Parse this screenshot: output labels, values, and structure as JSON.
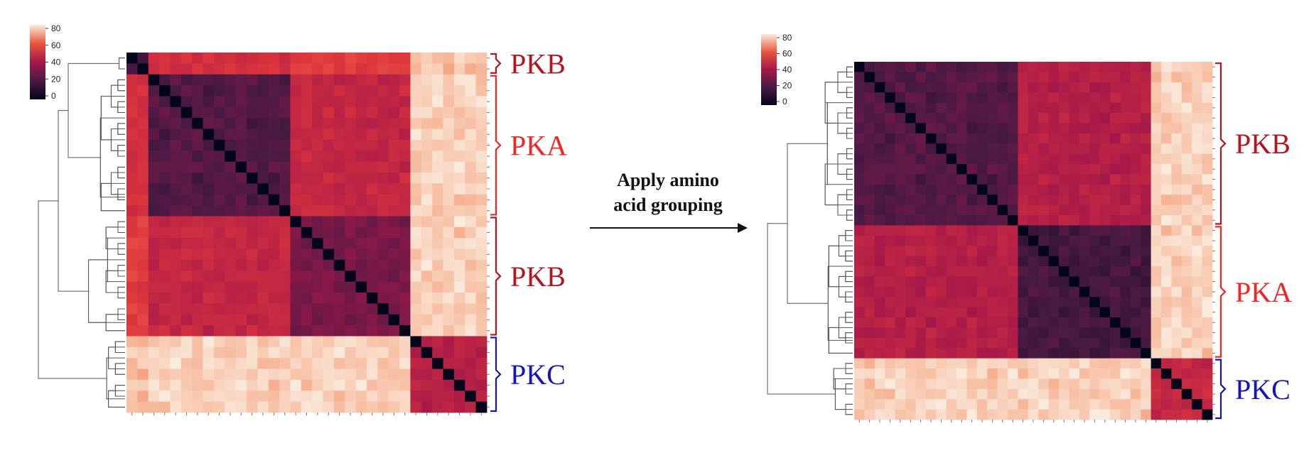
{
  "center": {
    "line1": "Apply amino",
    "line2": "acid grouping"
  },
  "colorbar_ticks": [
    "80",
    "60",
    "40",
    "20",
    "0"
  ],
  "colors": {
    "pkb": "#b3141f",
    "pka": "#ee2626",
    "pkc": "#1414b8",
    "dark": "#0a0a10",
    "light": "#f8dfcd"
  },
  "left": {
    "groups": [
      {
        "label": "PKB",
        "size": 2,
        "color_key": "pkb"
      },
      {
        "label": "PKA",
        "size": 13,
        "color_key": "pka"
      },
      {
        "label": "PKB",
        "size": 11,
        "color_key": "pkb"
      },
      {
        "label": "PKC",
        "size": 7,
        "color_key": "pkc"
      }
    ]
  },
  "right": {
    "groups": [
      {
        "label": "PKB",
        "size": 16,
        "color_key": "pkb"
      },
      {
        "label": "PKA",
        "size": 13,
        "color_key": "pka"
      },
      {
        "label": "PKC",
        "size": 6,
        "color_key": "pkc"
      }
    ]
  }
}
